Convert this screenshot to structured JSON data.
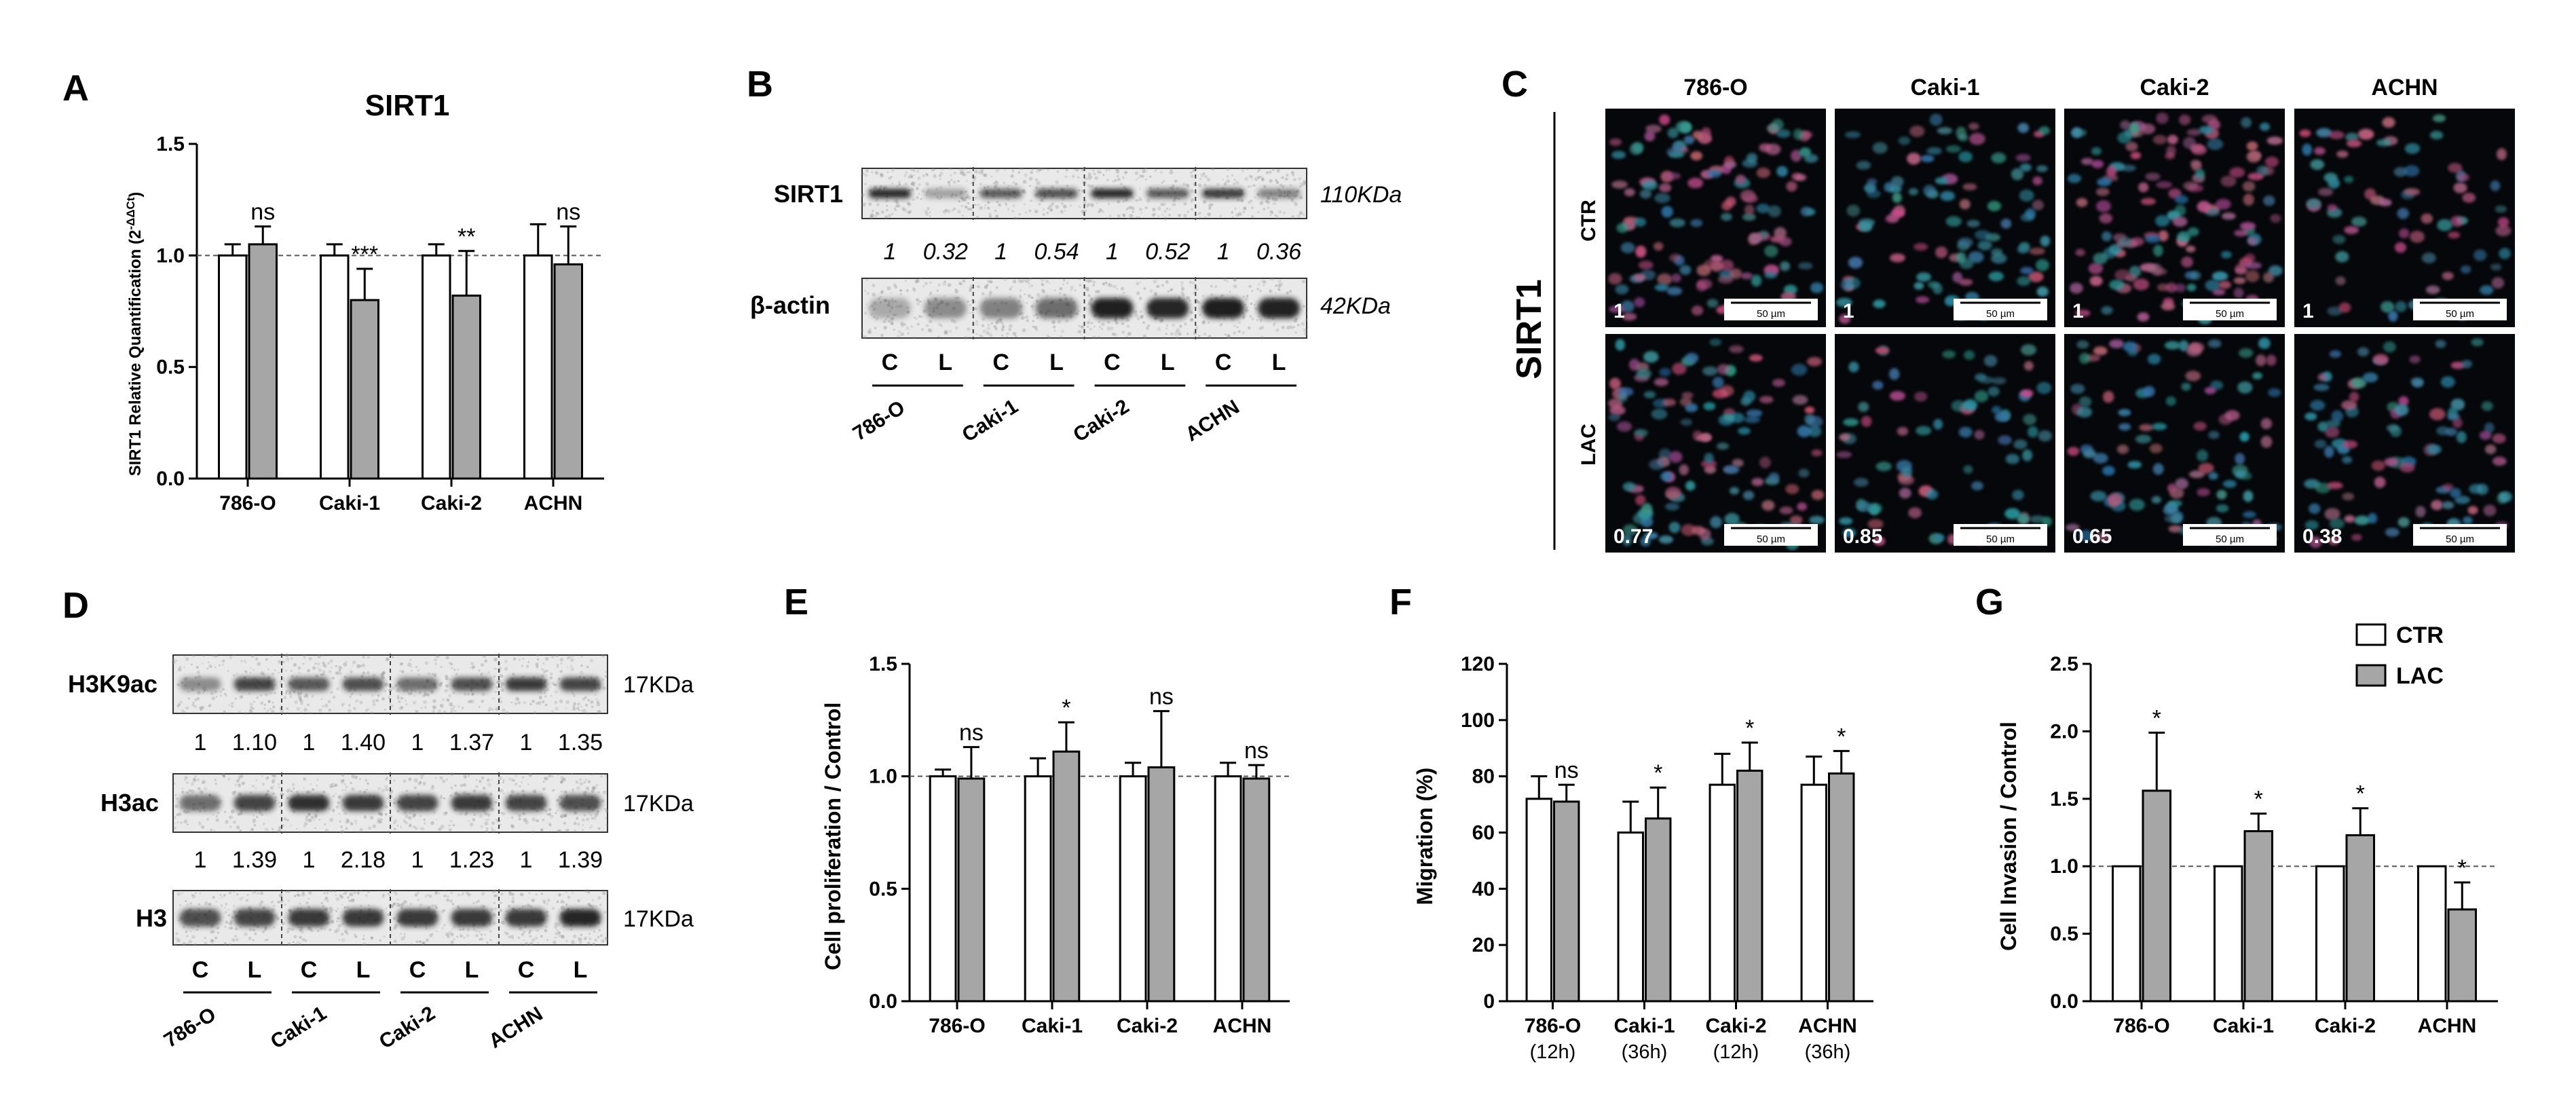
{
  "panels": {
    "A": {
      "label": "A",
      "title": "SIRT1",
      "ylabel": "SIRT1 Relative Quantification (2",
      "ylabel_sup": "-ΔΔCt",
      "ylabel_end": ")"
    },
    "B": {
      "label": "B",
      "rows": [
        {
          "name": "SIRT1",
          "size": "110KDa"
        },
        {
          "name": "β-actin",
          "size": "42KDa"
        }
      ],
      "values": [
        "1",
        "0.32",
        "1",
        "0.54",
        "1",
        "0.52",
        "1",
        "0.36"
      ],
      "lanes": [
        "C",
        "L",
        "C",
        "L",
        "C",
        "L",
        "C",
        "L"
      ],
      "groups": [
        "786-O",
        "Caki-1",
        "Caki-2",
        "ACHN"
      ]
    },
    "C": {
      "label": "C",
      "side_label": "SIRT1",
      "columns": [
        "786-O",
        "Caki-1",
        "Caki-2",
        "ACHN"
      ],
      "rows": [
        "CTR",
        "LAC"
      ],
      "values": [
        [
          "1",
          "1",
          "1",
          "1"
        ],
        [
          "0.77",
          "0.85",
          "0.65",
          "0.38"
        ]
      ],
      "scalebar": "50 µm"
    },
    "D": {
      "label": "D",
      "rows": [
        {
          "name": "H3K9ac",
          "size": "17KDa"
        },
        {
          "name": "H3ac",
          "size": "17KDa"
        },
        {
          "name": "H3",
          "size": "17KDa"
        }
      ],
      "values_h3k9ac": [
        "1",
        "1.10",
        "1",
        "1.40",
        "1",
        "1.37",
        "1",
        "1.35"
      ],
      "values_h3ac": [
        "1",
        "1.39",
        "1",
        "2.18",
        "1",
        "1.23",
        "1",
        "1.39"
      ],
      "lanes": [
        "C",
        "L",
        "C",
        "L",
        "C",
        "L",
        "C",
        "L"
      ],
      "groups": [
        "786-O",
        "Caki-1",
        "Caki-2",
        "ACHN"
      ]
    },
    "E": {
      "label": "E",
      "ylabel": "Cell proliferation / Control"
    },
    "F": {
      "label": "F",
      "ylabel": "Migration (%)"
    },
    "G": {
      "label": "G",
      "ylabel": "Cell Invasion / Control"
    }
  },
  "legend": {
    "items": [
      "CTR",
      "LAC"
    ]
  },
  "colors": {
    "ctr": "#ffffff",
    "lac": "#a6a6a6",
    "axis": "#000000",
    "refline": "#555555"
  },
  "chart_data": [
    {
      "id": "A",
      "type": "bar",
      "title": "SIRT1",
      "categories": [
        "786-O",
        "Caki-1",
        "Caki-2",
        "ACHN"
      ],
      "series": [
        {
          "name": "CTR",
          "values": [
            1.0,
            1.0,
            1.0,
            1.0
          ],
          "errors": [
            0.05,
            0.05,
            0.05,
            0.14
          ]
        },
        {
          "name": "LAC",
          "values": [
            1.05,
            0.8,
            0.82,
            0.96
          ],
          "errors": [
            0.08,
            0.14,
            0.2,
            0.17
          ]
        }
      ],
      "significance": [
        "ns",
        "***",
        "**",
        "ns"
      ],
      "ylim": [
        0,
        1.5
      ],
      "yticks": [
        "0.0",
        "0.5",
        "1.0",
        "1.5"
      ],
      "refline": 1.0
    },
    {
      "id": "E",
      "type": "bar",
      "categories": [
        "786-O",
        "Caki-1",
        "Caki-2",
        "ACHN"
      ],
      "series": [
        {
          "name": "CTR",
          "values": [
            1.0,
            1.0,
            1.0,
            1.0
          ],
          "errors": [
            0.03,
            0.08,
            0.06,
            0.06
          ]
        },
        {
          "name": "LAC",
          "values": [
            0.99,
            1.11,
            1.04,
            0.99
          ],
          "errors": [
            0.14,
            0.13,
            0.25,
            0.06
          ]
        }
      ],
      "significance": [
        "ns",
        "*",
        "ns",
        "ns"
      ],
      "ylim": [
        0,
        1.5
      ],
      "yticks": [
        "0.0",
        "0.5",
        "1.0",
        "1.5"
      ],
      "refline": 1.0
    },
    {
      "id": "F",
      "type": "bar",
      "categories": [
        "786-O",
        "Caki-1",
        "Caki-2",
        "ACHN"
      ],
      "subcategories": [
        "(12h)",
        "(36h)",
        "(12h)",
        "(36h)"
      ],
      "series": [
        {
          "name": "CTR",
          "values": [
            72,
            60,
            77,
            77
          ],
          "errors": [
            8,
            11,
            11,
            10
          ]
        },
        {
          "name": "LAC",
          "values": [
            71,
            65,
            82,
            81
          ],
          "errors": [
            6,
            11,
            10,
            8
          ]
        }
      ],
      "significance": [
        "ns",
        "*",
        "*",
        "*"
      ],
      "ylim": [
        0,
        120
      ],
      "yticks": [
        "0",
        "20",
        "40",
        "60",
        "80",
        "100",
        "120"
      ]
    },
    {
      "id": "G",
      "type": "bar",
      "categories": [
        "786-O",
        "Caki-1",
        "Caki-2",
        "ACHN"
      ],
      "series": [
        {
          "name": "CTR",
          "values": [
            1.0,
            1.0,
            1.0,
            1.0
          ],
          "errors": [
            0,
            0,
            0,
            0
          ]
        },
        {
          "name": "LAC",
          "values": [
            1.56,
            1.26,
            1.23,
            0.68
          ],
          "errors": [
            0.43,
            0.13,
            0.2,
            0.2
          ]
        }
      ],
      "significance": [
        "*",
        "*",
        "*",
        "*"
      ],
      "ylim": [
        0,
        2.5
      ],
      "yticks": [
        "0.0",
        "0.5",
        "1.0",
        "1.5",
        "2.0",
        "2.5"
      ],
      "refline": 1.0,
      "legend": "top-right"
    }
  ]
}
